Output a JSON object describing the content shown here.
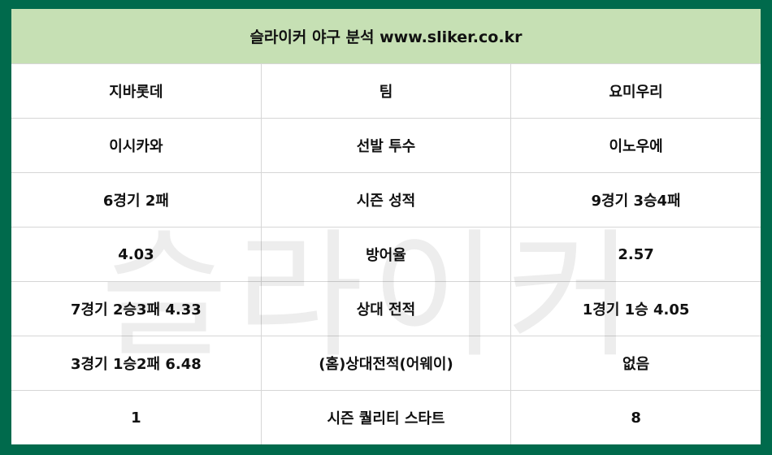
{
  "title": "슬라이커 야구 분석 www.sliker.co.kr",
  "watermark": "슬라이커",
  "colors": {
    "border": "#006a4c",
    "header_bg": "#c6e0b4"
  },
  "rows": [
    [
      "지바롯데",
      "팀",
      "요미우리"
    ],
    [
      "이시카와",
      "선발 투수",
      "이노우에"
    ],
    [
      "6경기 2패",
      "시즌 성적",
      "9경기 3승4패"
    ],
    [
      "4.03",
      "방어율",
      "2.57"
    ],
    [
      "7경기 2승3패 4.33",
      "상대 전적",
      "1경기 1승 4.05"
    ],
    [
      "3경기 1승2패 6.48",
      "(홈)상대전적(어웨이)",
      "없음"
    ],
    [
      "1",
      "시즌 퀄리티 스타트",
      "8"
    ]
  ]
}
